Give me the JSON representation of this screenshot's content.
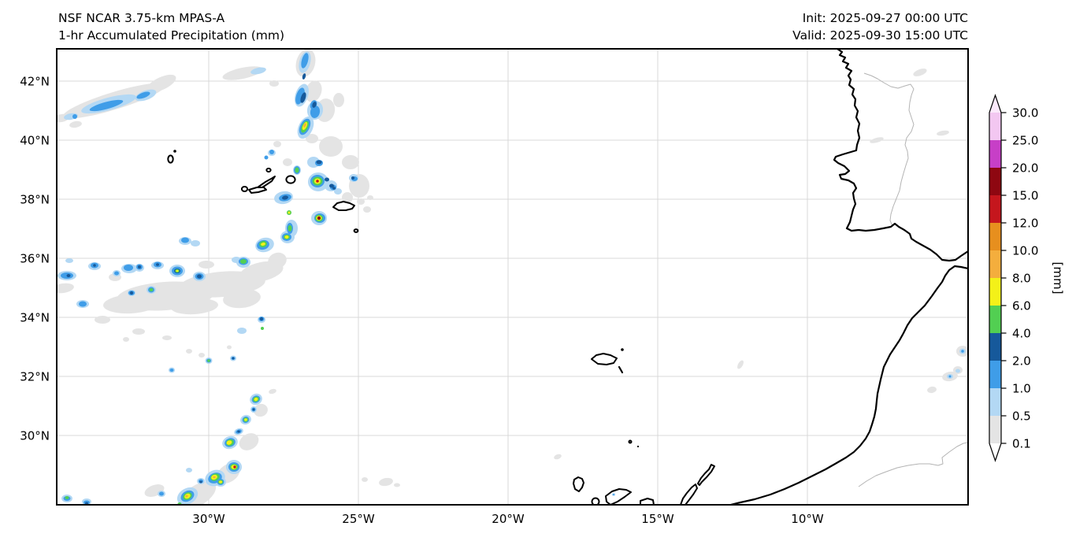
{
  "figure": {
    "title_line1": "NSF NCAR 3.75-km MPAS-A",
    "title_line2": "1-hr Accumulated Precipitation (mm)",
    "init_text": "Init: 2025-09-27 00:00 UTC",
    "valid_text": "Valid: 2025-09-30 15:00 UTC"
  },
  "axes": {
    "y_tick_labels": [
      "42°N",
      "40°N",
      "38°N",
      "36°N",
      "34°N",
      "32°N",
      "30°N"
    ],
    "x_tick_labels": [
      "30°W",
      "25°W",
      "20°W",
      "15°W",
      "10°W"
    ]
  },
  "colorbar": {
    "unit_label": "[mm]",
    "tick_labels_top_to_bottom": [
      "30.0",
      "25.0",
      "20.0",
      "15.0",
      "12.0",
      "10.0",
      "8.0",
      "6.0",
      "4.0",
      "2.0",
      "1.0",
      "0.5",
      "0.1"
    ],
    "colors_low_to_high": [
      "#ffffff",
      "#e4e4e4",
      "#b3d8f4",
      "#3f9de8",
      "#16599b",
      "#52cf52",
      "#f4f118",
      "#f4ae3d",
      "#e78f1e",
      "#c5161d",
      "#8e0711",
      "#c73fc7",
      "#f3c7f1",
      "#fbe9fb"
    ]
  },
  "chart_data": {
    "type": "heatmap",
    "title": "1-hr Accumulated Precipitation (mm)",
    "model": "NSF NCAR 3.75-km MPAS-A",
    "init": "2025-09-27 00:00 UTC",
    "valid": "2025-09-30 15:00 UTC",
    "colorbar_units": "[mm]",
    "levels_mm": [
      0.1,
      0.5,
      1.0,
      2.0,
      4.0,
      6.0,
      8.0,
      10.0,
      12.0,
      15.0,
      20.0,
      25.0,
      30.0
    ],
    "x_axis": {
      "tick_labels": [
        "30°W",
        "25°W",
        "20°W",
        "15°W",
        "10°W"
      ],
      "approx_range_deg_west": [
        35.1,
        4.6
      ]
    },
    "y_axis": {
      "tick_labels": [
        "42°N",
        "40°N",
        "38°N",
        "36°N",
        "34°N",
        "32°N",
        "30°N"
      ],
      "approx_range_deg_north": [
        27.7,
        43.1
      ]
    },
    "grid": true,
    "legend_position": "right vertical colorbar with extend arrows",
    "geography": [
      "Portugal west and south (Algarve) coastline",
      "Portugal–Spain border (thin gray line)",
      "Strait of Gibraltar and SW Spain coast",
      "NW Africa (Morocco) Atlantic coastline",
      "Inland administrative border over NW Africa (thin gray line)",
      "Azores archipelago (Corvo, Flores, Faial, Pico, São Jorge, Graciosa, Terceira, São Miguel, Santa Maria)",
      "Madeira, Porto Santo and Desertas",
      "Selvagens islets",
      "Canary Islands (La Palma, La Gomera, Tenerife, Gran Canaria, Fuerteventura, Lanzarote)"
    ],
    "precipitation_features": [
      {
        "name": "NE–SW light shower streak",
        "approx_lon": "33–31°W",
        "approx_lat": "40.8–41.6°N",
        "peak_mm": "1–2"
      },
      {
        "name": "N–S broken convective line with embedded strong cells",
        "approx_lon": "27–26°W",
        "approx_lat": "38–43°N",
        "peak_mm": "8–12"
      },
      {
        "name": "Strong cell west of Terceira (Azores)",
        "approx_lon": "26.4°W",
        "approx_lat": "38.6°N",
        "peak_mm": "12–15"
      },
      {
        "name": "Intense isolated cell south of São Miguel",
        "approx_lon": "26.3°W",
        "approx_lat": "37.4°N",
        "peak_mm": "15–20"
      },
      {
        "name": "E–W stratiform band with embedded showers",
        "approx_lon": "35–28°W",
        "approx_lat": "35–36°N",
        "peak_mm": "6–8"
      },
      {
        "name": "SW–NE convective line with several strong cells",
        "approx_lon": "30.5–27.5°W",
        "approx_lat": "28–31.5°N",
        "peak_mm": "12–15"
      },
      {
        "name": "Light scattered showers over Morocco interior",
        "approx_lon": "6–5°W",
        "approx_lat": "31–33°N",
        "peak_mm": "1–2"
      }
    ]
  }
}
